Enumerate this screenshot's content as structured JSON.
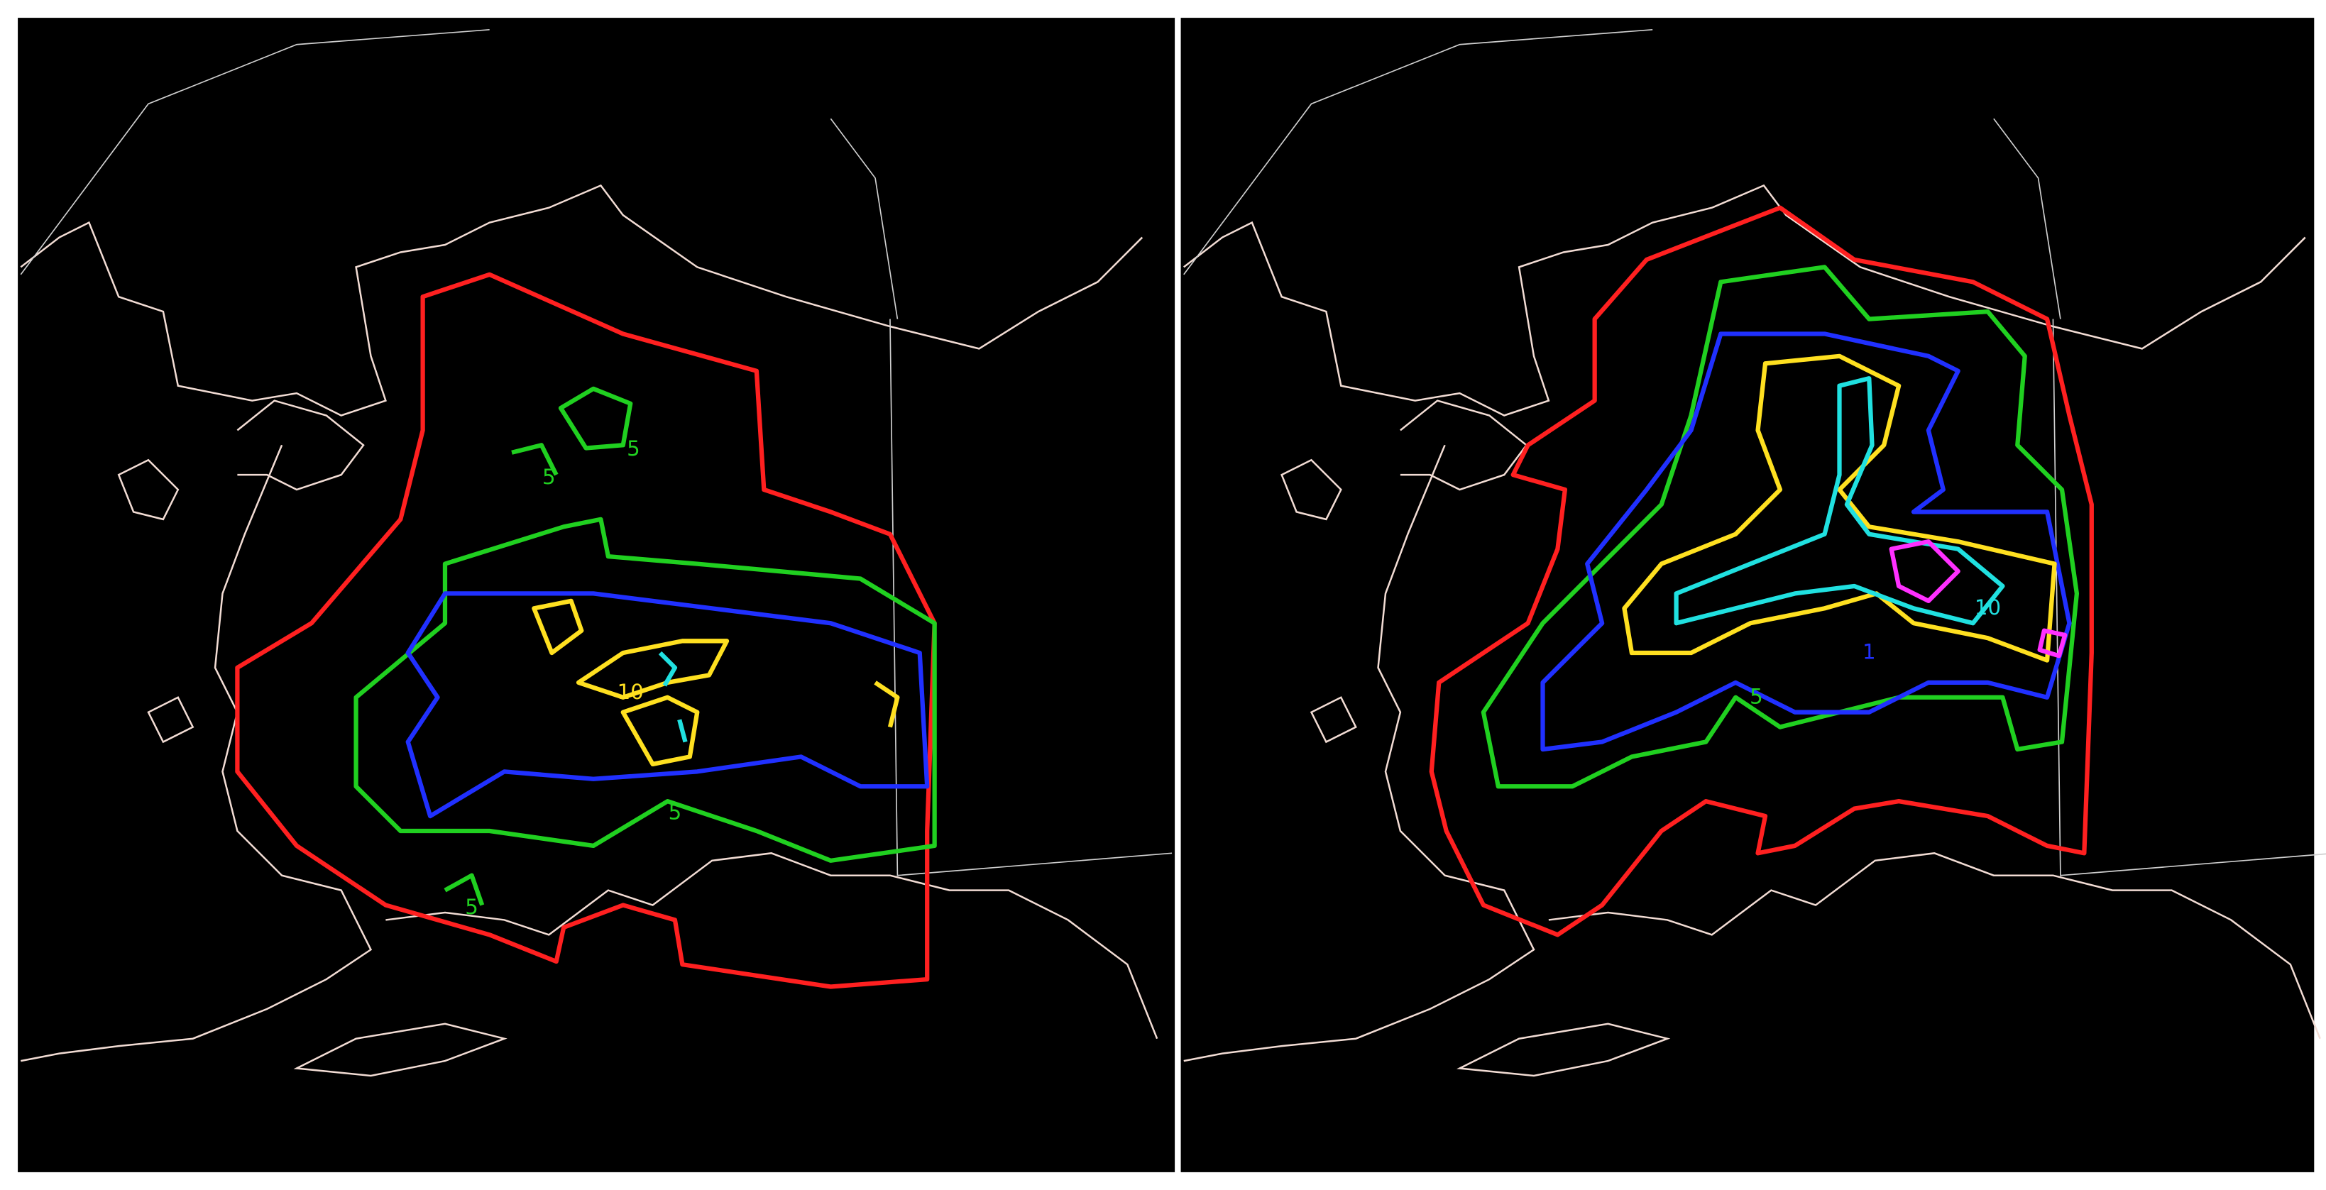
{
  "panels": [
    {
      "contour_labels": [
        "5",
        "5",
        "5",
        "5",
        "10"
      ]
    },
    {
      "contour_labels": [
        "5",
        "10",
        "1"
      ]
    }
  ]
}
